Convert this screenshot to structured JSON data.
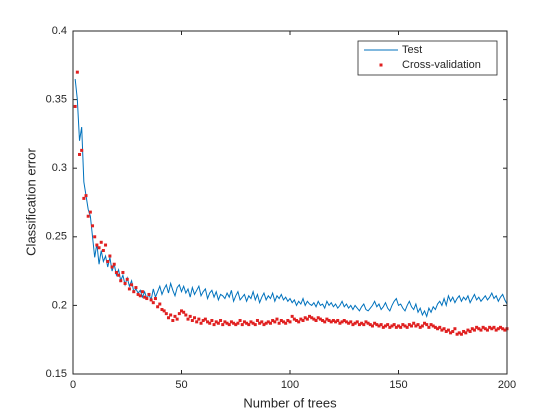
{
  "chart_data": {
    "type": "line_scatter",
    "xlabel": "Number of trees",
    "ylabel": "Classification error",
    "xlim": [
      0,
      200
    ],
    "ylim": [
      0.15,
      0.4
    ],
    "xticks": [
      0,
      50,
      100,
      150,
      200
    ],
    "yticks": [
      0.15,
      0.2,
      0.25,
      0.3,
      0.35,
      0.4
    ],
    "legend": "northeast",
    "x": [
      1,
      2,
      3,
      4,
      5,
      6,
      7,
      8,
      9,
      10,
      11,
      12,
      13,
      14,
      15,
      16,
      17,
      18,
      19,
      20,
      21,
      22,
      23,
      24,
      25,
      26,
      27,
      28,
      29,
      30,
      31,
      32,
      33,
      34,
      35,
      36,
      37,
      38,
      39,
      40,
      41,
      42,
      43,
      44,
      45,
      46,
      47,
      48,
      49,
      50,
      51,
      52,
      53,
      54,
      55,
      56,
      57,
      58,
      59,
      60,
      61,
      62,
      63,
      64,
      65,
      66,
      67,
      68,
      69,
      70,
      71,
      72,
      73,
      74,
      75,
      76,
      77,
      78,
      79,
      80,
      81,
      82,
      83,
      84,
      85,
      86,
      87,
      88,
      89,
      90,
      91,
      92,
      93,
      94,
      95,
      96,
      97,
      98,
      99,
      100,
      101,
      102,
      103,
      104,
      105,
      106,
      107,
      108,
      109,
      110,
      111,
      112,
      113,
      114,
      115,
      116,
      117,
      118,
      119,
      120,
      121,
      122,
      123,
      124,
      125,
      126,
      127,
      128,
      129,
      130,
      131,
      132,
      133,
      134,
      135,
      136,
      137,
      138,
      139,
      140,
      141,
      142,
      143,
      144,
      145,
      146,
      147,
      148,
      149,
      150,
      151,
      152,
      153,
      154,
      155,
      156,
      157,
      158,
      159,
      160,
      161,
      162,
      163,
      164,
      165,
      166,
      167,
      168,
      169,
      170,
      171,
      172,
      173,
      174,
      175,
      176,
      177,
      178,
      179,
      180,
      181,
      182,
      183,
      184,
      185,
      186,
      187,
      188,
      189,
      190,
      191,
      192,
      193,
      194,
      195,
      196,
      197,
      198,
      199,
      200
    ],
    "series": [
      {
        "name": "Test",
        "kind": "line",
        "color": "#0072bd",
        "values": [
          0.365,
          0.35,
          0.32,
          0.33,
          0.29,
          0.28,
          0.27,
          0.265,
          0.25,
          0.235,
          0.245,
          0.23,
          0.24,
          0.232,
          0.236,
          0.228,
          0.235,
          0.225,
          0.23,
          0.222,
          0.226,
          0.218,
          0.222,
          0.215,
          0.22,
          0.214,
          0.218,
          0.21,
          0.212,
          0.209,
          0.211,
          0.206,
          0.21,
          0.205,
          0.208,
          0.204,
          0.212,
          0.206,
          0.21,
          0.214,
          0.208,
          0.212,
          0.215,
          0.209,
          0.216,
          0.211,
          0.207,
          0.213,
          0.215,
          0.21,
          0.214,
          0.209,
          0.212,
          0.206,
          0.213,
          0.208,
          0.211,
          0.214,
          0.207,
          0.21,
          0.212,
          0.205,
          0.209,
          0.211,
          0.206,
          0.21,
          0.204,
          0.208,
          0.207,
          0.205,
          0.209,
          0.206,
          0.211,
          0.203,
          0.207,
          0.21,
          0.204,
          0.206,
          0.208,
          0.203,
          0.207,
          0.205,
          0.21,
          0.204,
          0.208,
          0.202,
          0.206,
          0.209,
          0.204,
          0.207,
          0.205,
          0.209,
          0.203,
          0.207,
          0.205,
          0.208,
          0.204,
          0.206,
          0.203,
          0.205,
          0.202,
          0.204,
          0.2,
          0.203,
          0.201,
          0.205,
          0.2,
          0.203,
          0.201,
          0.2,
          0.202,
          0.199,
          0.203,
          0.2,
          0.201,
          0.198,
          0.203,
          0.2,
          0.202,
          0.199,
          0.201,
          0.198,
          0.2,
          0.203,
          0.199,
          0.201,
          0.198,
          0.2,
          0.197,
          0.2,
          0.198,
          0.196,
          0.199,
          0.201,
          0.197,
          0.196,
          0.198,
          0.2,
          0.203,
          0.199,
          0.201,
          0.197,
          0.199,
          0.202,
          0.198,
          0.196,
          0.2,
          0.203,
          0.205,
          0.2,
          0.201,
          0.198,
          0.196,
          0.2,
          0.203,
          0.199,
          0.197,
          0.201,
          0.195,
          0.198,
          0.193,
          0.196,
          0.192,
          0.198,
          0.195,
          0.199,
          0.197,
          0.201,
          0.203,
          0.2,
          0.205,
          0.2,
          0.207,
          0.203,
          0.206,
          0.202,
          0.205,
          0.207,
          0.203,
          0.206,
          0.204,
          0.207,
          0.202,
          0.205,
          0.208,
          0.204,
          0.206,
          0.203,
          0.205,
          0.207,
          0.204,
          0.206,
          0.209,
          0.205,
          0.207,
          0.203,
          0.206,
          0.208,
          0.204,
          0.201
        ]
      },
      {
        "name": "Cross-validation",
        "kind": "scatter",
        "color": "#e02020",
        "values": [
          0.345,
          0.37,
          0.31,
          0.313,
          0.278,
          0.28,
          0.265,
          0.268,
          0.258,
          0.25,
          0.244,
          0.242,
          0.246,
          0.24,
          0.244,
          0.232,
          0.236,
          0.228,
          0.23,
          0.224,
          0.222,
          0.218,
          0.224,
          0.216,
          0.219,
          0.212,
          0.215,
          0.21,
          0.213,
          0.208,
          0.207,
          0.21,
          0.206,
          0.205,
          0.208,
          0.204,
          0.202,
          0.205,
          0.199,
          0.201,
          0.197,
          0.196,
          0.194,
          0.191,
          0.193,
          0.189,
          0.192,
          0.19,
          0.194,
          0.196,
          0.195,
          0.193,
          0.19,
          0.192,
          0.189,
          0.191,
          0.188,
          0.19,
          0.187,
          0.189,
          0.19,
          0.188,
          0.187,
          0.189,
          0.186,
          0.188,
          0.187,
          0.189,
          0.186,
          0.188,
          0.187,
          0.186,
          0.188,
          0.187,
          0.186,
          0.187,
          0.189,
          0.186,
          0.188,
          0.187,
          0.186,
          0.188,
          0.187,
          0.186,
          0.189,
          0.187,
          0.188,
          0.186,
          0.187,
          0.188,
          0.187,
          0.189,
          0.188,
          0.19,
          0.187,
          0.189,
          0.188,
          0.187,
          0.189,
          0.188,
          0.192,
          0.19,
          0.189,
          0.188,
          0.19,
          0.189,
          0.191,
          0.19,
          0.192,
          0.191,
          0.19,
          0.189,
          0.191,
          0.19,
          0.189,
          0.188,
          0.19,
          0.189,
          0.188,
          0.189,
          0.188,
          0.189,
          0.187,
          0.188,
          0.189,
          0.188,
          0.187,
          0.188,
          0.186,
          0.187,
          0.188,
          0.186,
          0.187,
          0.186,
          0.188,
          0.187,
          0.186,
          0.185,
          0.187,
          0.186,
          0.185,
          0.186,
          0.184,
          0.185,
          0.186,
          0.184,
          0.185,
          0.186,
          0.184,
          0.185,
          0.184,
          0.186,
          0.185,
          0.184,
          0.186,
          0.185,
          0.187,
          0.185,
          0.186,
          0.184,
          0.185,
          0.187,
          0.186,
          0.184,
          0.186,
          0.185,
          0.184,
          0.183,
          0.184,
          0.182,
          0.183,
          0.181,
          0.182,
          0.18,
          0.181,
          0.183,
          0.179,
          0.18,
          0.179,
          0.181,
          0.18,
          0.182,
          0.181,
          0.183,
          0.182,
          0.184,
          0.183,
          0.182,
          0.184,
          0.183,
          0.182,
          0.184,
          0.183,
          0.184,
          0.182,
          0.183,
          0.184,
          0.183,
          0.182,
          0.183
        ]
      }
    ]
  }
}
